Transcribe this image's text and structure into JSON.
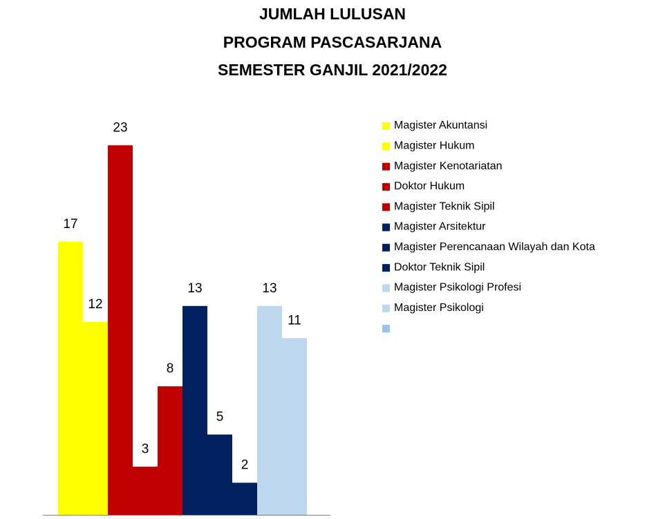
{
  "chart_data": {
    "type": "bar",
    "title": [
      "JUMLAH LULUSAN",
      "PROGRAM PASCASARJANA",
      "SEMESTER GANJIL 2021/2022"
    ],
    "ylim": [
      0,
      25
    ],
    "series": [
      {
        "name": "Magister Akuntansi",
        "color": "#ffff00",
        "values": [
          17
        ]
      },
      {
        "name": "Magister  Hukum",
        "color": "#ffff00",
        "values": [
          12
        ]
      },
      {
        "name": "Magister Kenotariatan",
        "color": "#c00000",
        "values": [
          23
        ]
      },
      {
        "name": "Doktor Hukum",
        "color": "#c00000",
        "values": [
          3
        ]
      },
      {
        "name": "Magister Teknik Sipil",
        "color": "#c00000",
        "values": [
          8
        ]
      },
      {
        "name": "Magister Arsitektur",
        "color": "#002060",
        "values": [
          13
        ]
      },
      {
        "name": "Magister Perencanaan Wilayah dan Kota",
        "color": "#002060",
        "values": [
          5
        ]
      },
      {
        "name": "Doktor Teknik Sipil",
        "color": "#002060",
        "values": [
          2
        ]
      },
      {
        "name": "Magister Psikologi Profesi",
        "color": "#bdd7ee",
        "values": [
          13
        ]
      },
      {
        "name": "Magister Psikologi",
        "color": "#bdd7ee",
        "values": [
          11
        ]
      }
    ]
  }
}
